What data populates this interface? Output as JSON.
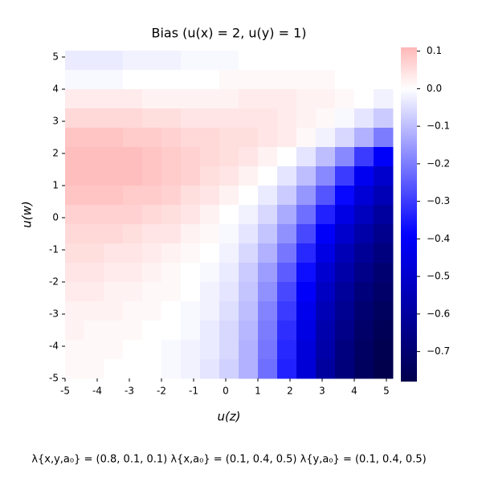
{
  "chart_data": {
    "type": "heatmap",
    "title": "Bias (u(x) = 2, u(y) = 1)",
    "x_label": "u(z)",
    "y_label": "u(w)",
    "annotation": "λ{x,y,a₀} = (0.8, 0.1, 0.1)  λ{x,a₀} = (0.1, 0.4, 0.5)  λ{y,a₀} = (0.1, 0.4, 0.5)",
    "cmap": "seismic",
    "xlim": [
      -5,
      5.2
    ],
    "ylim": [
      -5,
      5.2
    ],
    "xticks": [
      -5,
      -4,
      -3,
      -2,
      -1,
      0,
      1,
      2,
      3,
      4,
      5
    ],
    "yticks": [
      -5,
      -4,
      -3,
      -2,
      -1,
      0,
      1,
      2,
      3,
      4,
      5
    ],
    "clim": [
      -0.78,
      0.11
    ],
    "cticks": [
      {
        "value": 0.1,
        "label": "0.1"
      },
      {
        "value": 0,
        "label": "0.0"
      },
      {
        "value": -0.1,
        "label": "−0.1"
      },
      {
        "value": -0.2,
        "label": "−0.2"
      },
      {
        "value": -0.3,
        "label": "−0.3"
      },
      {
        "value": -0.4,
        "label": "−0.4"
      },
      {
        "value": -0.5,
        "label": "−0.5"
      },
      {
        "value": -0.6,
        "label": "−0.6"
      },
      {
        "value": -0.7,
        "label": "−0.7"
      }
    ],
    "values": [
      [
        -0.03,
        -0.03,
        -0.03,
        -0.02,
        -0.02,
        -0.02,
        -0.01,
        -0.01,
        -0.01,
        0,
        0,
        0,
        0,
        0,
        0,
        0,
        0
      ],
      [
        -0.01,
        -0.01,
        -0.01,
        0,
        0,
        0,
        0,
        0,
        0.01,
        0.01,
        0.01,
        0.01,
        0.01,
        0.01,
        0,
        0,
        0
      ],
      [
        0.03,
        0.03,
        0.03,
        0.03,
        0.02,
        0.02,
        0.02,
        0.02,
        0.02,
        0.03,
        0.03,
        0.03,
        0.02,
        0.02,
        0.01,
        0,
        -0.02
      ],
      [
        0.06,
        0.06,
        0.06,
        0.06,
        0.05,
        0.05,
        0.04,
        0.04,
        0.04,
        0.04,
        0.04,
        0.03,
        0.02,
        0.01,
        -0.01,
        -0.04,
        -0.08
      ],
      [
        0.09,
        0.09,
        0.09,
        0.08,
        0.08,
        0.07,
        0.06,
        0.06,
        0.05,
        0.05,
        0.04,
        0.03,
        0.01,
        -0.02,
        -0.06,
        -0.12,
        -0.2
      ],
      [
        0.1,
        0.1,
        0.1,
        0.1,
        0.09,
        0.08,
        0.07,
        0.06,
        0.05,
        0.04,
        0.02,
        0,
        -0.04,
        -0.1,
        -0.18,
        -0.3,
        -0.4
      ],
      [
        0.1,
        0.1,
        0.1,
        0.1,
        0.09,
        0.08,
        0.07,
        0.05,
        0.04,
        0.02,
        0,
        -0.04,
        -0.1,
        -0.18,
        -0.3,
        -0.42,
        -0.5
      ],
      [
        0.09,
        0.09,
        0.09,
        0.08,
        0.08,
        0.07,
        0.05,
        0.04,
        0.02,
        0,
        -0.03,
        -0.08,
        -0.16,
        -0.26,
        -0.38,
        -0.48,
        -0.55
      ],
      [
        0.07,
        0.07,
        0.07,
        0.07,
        0.06,
        0.05,
        0.04,
        0.02,
        0,
        -0.02,
        -0.06,
        -0.13,
        -0.22,
        -0.34,
        -0.45,
        -0.53,
        -0.6
      ],
      [
        0.06,
        0.06,
        0.06,
        0.05,
        0.04,
        0.04,
        0.02,
        0.01,
        -0.01,
        -0.04,
        -0.09,
        -0.17,
        -0.28,
        -0.4,
        -0.5,
        -0.58,
        -0.64
      ],
      [
        0.05,
        0.05,
        0.04,
        0.04,
        0.03,
        0.02,
        0.01,
        0,
        -0.02,
        -0.06,
        -0.12,
        -0.21,
        -0.33,
        -0.45,
        -0.55,
        -0.62,
        -0.67
      ],
      [
        0.04,
        0.04,
        0.03,
        0.03,
        0.02,
        0.01,
        0,
        -0.01,
        -0.03,
        -0.08,
        -0.15,
        -0.25,
        -0.37,
        -0.49,
        -0.58,
        -0.65,
        -0.7
      ],
      [
        0.03,
        0.03,
        0.02,
        0.02,
        0.01,
        0.01,
        0,
        -0.02,
        -0.04,
        -0.09,
        -0.17,
        -0.28,
        -0.4,
        -0.52,
        -0.61,
        -0.68,
        -0.72
      ],
      [
        0.02,
        0.02,
        0.02,
        0.01,
        0.01,
        0,
        -0.01,
        -0.02,
        -0.05,
        -0.1,
        -0.19,
        -0.3,
        -0.43,
        -0.55,
        -0.63,
        -0.7,
        -0.74
      ],
      [
        0.02,
        0.01,
        0.01,
        0.01,
        0,
        0,
        -0.01,
        -0.03,
        -0.06,
        -0.11,
        -0.2,
        -0.32,
        -0.45,
        -0.57,
        -0.65,
        -0.72,
        -0.76
      ],
      [
        0.01,
        0.01,
        0.01,
        0,
        0,
        -0.01,
        -0.02,
        -0.03,
        -0.06,
        -0.12,
        -0.21,
        -0.33,
        -0.47,
        -0.58,
        -0.67,
        -0.73,
        -0.77
      ],
      [
        0.01,
        0.01,
        0,
        0,
        0,
        -0.01,
        -0.02,
        -0.04,
        -0.07,
        -0.12,
        -0.22,
        -0.34,
        -0.48,
        -0.6,
        -0.68,
        -0.74,
        -0.78
      ]
    ]
  }
}
